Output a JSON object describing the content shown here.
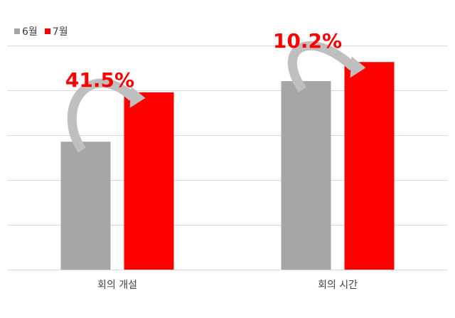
{
  "chart_data": {
    "type": "bar",
    "categories": [
      "회의 개설",
      "회의 시간"
    ],
    "series": [
      {
        "name": "6월",
        "color": "#a6a6a6",
        "values": [
          0.57,
          0.84
        ]
      },
      {
        "name": "7월",
        "color": "#ff0000",
        "values": [
          0.79,
          0.925
        ]
      }
    ],
    "ylim": [
      0,
      1.1
    ],
    "grid": true,
    "legend": "top-left",
    "annotations": [
      {
        "category_index": 0,
        "text": "41.5%"
      },
      {
        "category_index": 1,
        "text": "10.2%"
      }
    ]
  }
}
